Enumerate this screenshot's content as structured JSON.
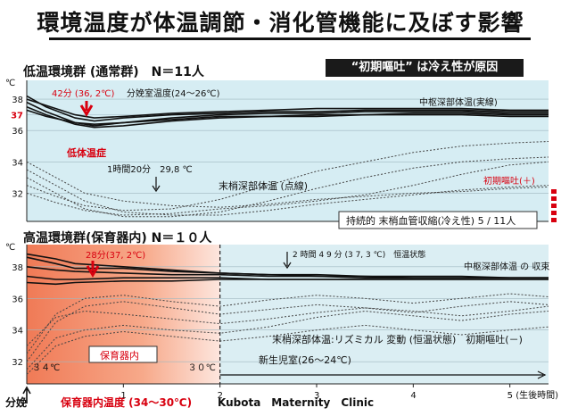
{
  "title": "環境温度が体温調節・消化管機能に及ぼす影響",
  "callout": "“初期嘔吐” は冷え性が原因",
  "source": "Kubota　Maternity　Clinic",
  "colors": {
    "core_line": "#111111",
    "peripheral_line": "#444444",
    "accent_red": "#d8000f",
    "upper_bg": "#d6edf3",
    "lower_bg_warm": "#f07a56",
    "lower_bg_cool": "#dbeef3"
  },
  "chart_data": [
    {
      "type": "line",
      "panel_title": "低温環境群 (通常群)　N＝11人",
      "y_unit": "℃",
      "y_ticks": [
        32,
        34,
        36,
        37,
        38
      ],
      "ylim": [
        30.2,
        39.2
      ],
      "xlim": [
        0,
        5.4
      ],
      "annotations": {
        "min_core": "42分 (36, 2℃)",
        "room": "分娩室温度(24～26℃)",
        "core": "中枢深部体温(実線)",
        "hypothermia": "低体温症",
        "time_mark": "1時間20分　29,8 ℃",
        "peripheral": "末梢深部体温 (点線)",
        "vomit": "初期嘔吐(＋)",
        "vasoconstriction": "持続的 末梢血管収縮(冷え性) 5 / 11人"
      },
      "series": [
        {
          "style": "solid",
          "x": [
            0,
            0.2,
            0.5,
            0.7,
            1,
            1.5,
            2,
            2.5,
            3,
            3.5,
            4,
            4.5,
            5,
            5.4
          ],
          "y": [
            37.8,
            37.2,
            36.5,
            36.3,
            36.5,
            36.8,
            37.0,
            37.1,
            37.1,
            37.2,
            37.2,
            37.2,
            37.1,
            37.1
          ]
        },
        {
          "style": "solid",
          "x": [
            0,
            0.2,
            0.5,
            0.7,
            1,
            1.5,
            2,
            2.5,
            3,
            3.5,
            4,
            4.5,
            5,
            5.4
          ],
          "y": [
            38.2,
            37.5,
            36.8,
            36.6,
            36.8,
            37.0,
            37.1,
            37.2,
            37.2,
            37.3,
            37.3,
            37.3,
            37.2,
            37.2
          ]
        },
        {
          "style": "solid",
          "x": [
            0,
            0.2,
            0.5,
            0.7,
            1,
            1.5,
            2,
            2.5,
            3,
            3.5,
            4,
            4.5,
            5,
            5.4
          ],
          "y": [
            37.5,
            37.0,
            36.4,
            36.2,
            36.3,
            36.6,
            36.8,
            36.9,
            36.9,
            37.0,
            37.0,
            37.0,
            36.9,
            36.9
          ]
        },
        {
          "style": "solid",
          "x": [
            0,
            0.2,
            0.5,
            0.7,
            1,
            1.5,
            2,
            2.5,
            3,
            3.5,
            4,
            4.5,
            5,
            5.4
          ],
          "y": [
            38.0,
            37.6,
            37.0,
            36.8,
            36.9,
            37.1,
            37.2,
            37.3,
            37.4,
            37.4,
            37.4,
            37.4,
            37.3,
            37.3
          ]
        },
        {
          "style": "solid",
          "x": [
            0,
            0.2,
            0.5,
            0.7,
            1,
            1.5,
            2,
            2.5,
            3,
            3.5,
            4,
            4.5,
            5,
            5.4
          ],
          "y": [
            37.3,
            36.9,
            36.5,
            36.4,
            36.5,
            36.7,
            36.9,
            36.9,
            37.0,
            37.0,
            37.1,
            37.1,
            37.0,
            37.0
          ]
        },
        {
          "style": "dotted",
          "x": [
            0,
            0.3,
            0.6,
            1,
            1.5,
            2,
            2.5,
            3,
            3.5,
            4,
            4.5,
            5,
            5.4
          ],
          "y": [
            33.5,
            32.5,
            31.5,
            30.8,
            30.6,
            30.6,
            30.9,
            31.3,
            31.6,
            31.9,
            32.2,
            32.4,
            32.5
          ]
        },
        {
          "style": "dotted",
          "x": [
            0,
            0.3,
            0.6,
            1,
            1.5,
            2,
            2.5,
            3,
            3.5,
            4,
            4.5,
            5,
            5.4
          ],
          "y": [
            33.0,
            32.0,
            31.0,
            30.5,
            30.5,
            30.8,
            31.5,
            32.3,
            33.0,
            33.6,
            34.0,
            34.2,
            34.3
          ]
        },
        {
          "style": "dotted",
          "x": [
            0,
            0.3,
            0.6,
            1,
            1.5,
            2,
            2.5,
            3,
            3.5,
            4,
            4.5,
            5,
            5.4
          ],
          "y": [
            32.5,
            31.8,
            31.2,
            30.9,
            31.0,
            31.6,
            32.5,
            33.4,
            34.0,
            34.6,
            35.0,
            35.2,
            35.3
          ]
        },
        {
          "style": "dotted",
          "x": [
            0,
            0.3,
            0.6,
            1,
            1.5,
            2,
            2.5,
            3,
            3.5,
            4,
            4.5,
            5,
            5.4
          ],
          "y": [
            34.0,
            33.0,
            32.0,
            31.5,
            31.2,
            31.1,
            31.3,
            31.6,
            31.8,
            32.0,
            32.1,
            32.3,
            32.4
          ]
        },
        {
          "style": "dotted",
          "x": [
            0,
            0.3,
            0.6,
            1,
            1.5,
            2,
            2.5,
            3,
            3.5,
            4,
            4.5,
            5,
            5.4
          ],
          "y": [
            32.0,
            31.4,
            30.9,
            30.6,
            30.7,
            31.0,
            31.2,
            31.5,
            31.9,
            32.5,
            33.2,
            33.8,
            34.0
          ]
        }
      ]
    },
    {
      "type": "line",
      "panel_title": "高温環境群(保育器内) N＝１０人",
      "y_unit": "℃",
      "y_ticks": [
        32,
        34,
        36,
        38
      ],
      "ylim": [
        30.6,
        39.4
      ],
      "xlim": [
        0,
        5.4
      ],
      "x_ticks": [
        "1",
        "2",
        "3",
        "4",
        "5 (生後時間)"
      ],
      "x_tick_values": [
        1,
        2,
        3,
        4,
        5
      ],
      "annotations": {
        "max_core": "28分(37, 2℃)",
        "time_mark": "2 時間 4 9 分 (3 7, 3 ℃)　恒温状態",
        "core": "中枢深部体温 の 収束",
        "peripheral": "末梢深部体温:リズミカル 変動 (恒温状態)　初期嘔吐(－)",
        "incubator": "保育器内",
        "nursery": "新生児室(26～24℃)",
        "temp_start": "３４℃",
        "temp_end": "３０℃",
        "birth": "分娩",
        "incubator_temp": "保育器内温度 (34～30℃)"
      },
      "series": [
        {
          "style": "solid",
          "x": [
            0,
            0.3,
            0.5,
            1,
            1.5,
            2,
            2.5,
            3,
            3.5,
            4,
            4.5,
            5,
            5.4
          ],
          "y": [
            38.6,
            38.2,
            37.9,
            37.9,
            37.7,
            37.6,
            37.5,
            37.5,
            37.4,
            37.4,
            37.4,
            37.3,
            37.3
          ]
        },
        {
          "style": "solid",
          "x": [
            0,
            0.3,
            0.5,
            1,
            1.5,
            2,
            2.5,
            3,
            3.5,
            4,
            4.5,
            5,
            5.4
          ],
          "y": [
            38.0,
            37.8,
            37.7,
            37.6,
            37.5,
            37.5,
            37.4,
            37.4,
            37.3,
            37.3,
            37.3,
            37.3,
            37.3
          ]
        },
        {
          "style": "solid",
          "x": [
            0,
            0.3,
            0.5,
            1,
            1.5,
            2,
            2.5,
            3,
            3.5,
            4,
            4.5,
            5,
            5.4
          ],
          "y": [
            37.4,
            37.2,
            37.2,
            37.3,
            37.3,
            37.3,
            37.2,
            37.2,
            37.2,
            37.2,
            37.2,
            37.2,
            37.2
          ]
        },
        {
          "style": "solid",
          "x": [
            0,
            0.3,
            0.5,
            1,
            1.5,
            2,
            2.5,
            3,
            3.5,
            4,
            4.5,
            5,
            5.4
          ],
          "y": [
            38.8,
            38.5,
            38.2,
            38.0,
            37.8,
            37.6,
            37.5,
            37.4,
            37.4,
            37.3,
            37.3,
            37.3,
            37.3
          ]
        },
        {
          "style": "solid",
          "x": [
            0,
            0.3,
            0.5,
            1,
            1.5,
            2,
            2.5,
            3,
            3.5,
            4,
            4.5,
            5,
            5.4
          ],
          "y": [
            37.0,
            36.9,
            37.0,
            37.1,
            37.1,
            37.2,
            37.2,
            37.2,
            37.2,
            37.2,
            37.2,
            37.2,
            37.2
          ]
        },
        {
          "style": "dotted",
          "x": [
            0,
            0.3,
            0.6,
            1,
            1.5,
            2,
            2.5,
            3,
            3.5,
            4,
            4.5,
            5,
            5.4
          ],
          "y": [
            32.0,
            34.5,
            35.5,
            35.8,
            35.4,
            35.0,
            35.3,
            35.6,
            35.4,
            35.1,
            35.5,
            35.8,
            35.6
          ]
        },
        {
          "style": "dotted",
          "x": [
            0,
            0.3,
            0.6,
            1,
            1.5,
            2,
            2.5,
            3,
            3.5,
            4,
            4.5,
            5,
            5.4
          ],
          "y": [
            31.5,
            33.5,
            34.0,
            34.3,
            34.0,
            33.8,
            34.2,
            34.8,
            35.2,
            34.9,
            34.6,
            35.0,
            35.2
          ]
        },
        {
          "style": "dotted",
          "x": [
            0,
            0.3,
            0.6,
            1,
            1.5,
            2,
            2.5,
            3,
            3.5,
            4,
            4.5,
            5,
            5.4
          ],
          "y": [
            32.5,
            35.0,
            36.0,
            36.2,
            35.8,
            35.5,
            35.9,
            36.2,
            36.0,
            35.7,
            36.0,
            36.3,
            36.1
          ]
        },
        {
          "style": "dotted",
          "x": [
            0,
            0.3,
            0.6,
            1,
            1.5,
            2,
            2.5,
            3,
            3.5,
            4,
            4.5,
            5,
            5.4
          ],
          "y": [
            31.2,
            33.0,
            33.6,
            33.9,
            33.6,
            33.3,
            33.6,
            34.0,
            34.3,
            34.0,
            33.7,
            34.0,
            34.2
          ]
        },
        {
          "style": "dotted",
          "x": [
            0,
            0.3,
            0.6,
            1,
            1.5,
            2,
            2.5,
            3,
            3.5,
            4,
            4.5,
            5,
            5.4
          ],
          "y": [
            33.0,
            34.8,
            35.2,
            35.0,
            34.7,
            34.4,
            34.7,
            35.1,
            35.4,
            35.2,
            34.9,
            35.2,
            35.5
          ]
        }
      ]
    }
  ]
}
